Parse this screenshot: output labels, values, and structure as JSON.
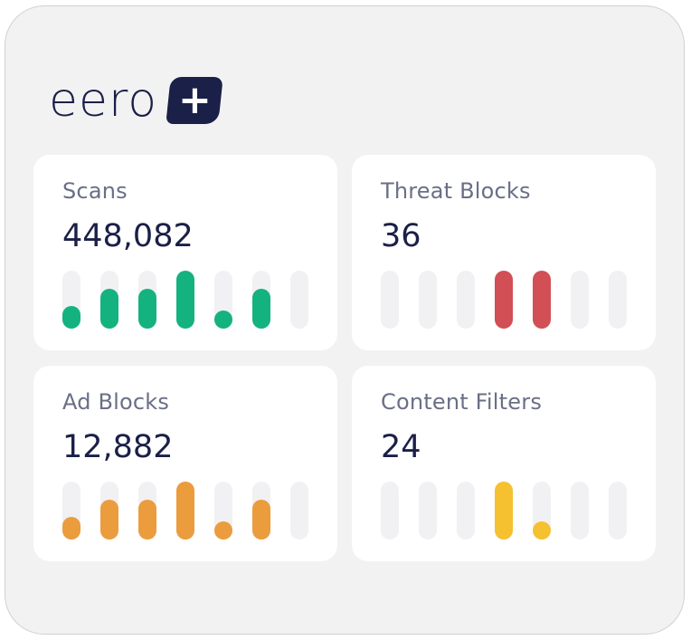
{
  "brand": {
    "name": "eero",
    "badge_symbol": "+",
    "color": "#1b2048"
  },
  "track_color": "#f1f1f3",
  "cards": [
    {
      "id": "scans",
      "label": "Scans",
      "value": "448,082",
      "color": "#14b27f",
      "bars": [
        0.31,
        0.65,
        0.65,
        1.0,
        0.22,
        0.65,
        0
      ]
    },
    {
      "id": "threat-blocks",
      "label": "Threat Blocks",
      "value": "36",
      "color": "#d14f55",
      "bars": [
        0,
        0,
        0,
        1.0,
        1.0,
        0,
        0
      ]
    },
    {
      "id": "ad-blocks",
      "label": "Ad Blocks",
      "value": "12,882",
      "color": "#eb9c3c",
      "bars": [
        0.31,
        0.65,
        0.65,
        1.0,
        0.22,
        0.65,
        0
      ]
    },
    {
      "id": "content-filters",
      "label": "Content Filters",
      "value": "24",
      "color": "#f5c130",
      "bars": [
        0,
        0,
        0,
        1.0,
        0.22,
        0,
        0
      ]
    }
  ]
}
